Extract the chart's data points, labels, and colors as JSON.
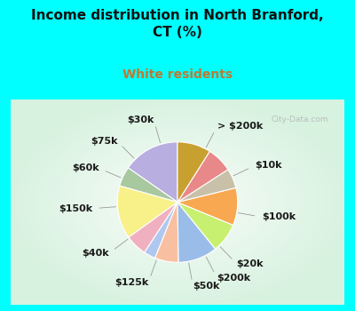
{
  "title": "Income distribution in North Branford,\nCT (%)",
  "subtitle": "White residents",
  "background_outer": "#00FFFF",
  "background_inner_color": "#c8ede0",
  "labels": [
    "> $200k",
    "$10k",
    "$100k",
    "$20k",
    "$200k",
    "$50k",
    "$125k",
    "$40k",
    "$150k",
    "$60k",
    "$75k",
    "$30k"
  ],
  "values": [
    14.5,
    5.0,
    13.5,
    5.5,
    3.0,
    6.0,
    10.0,
    7.5,
    9.5,
    5.0,
    6.5,
    8.5
  ],
  "colors": [
    "#b8aee0",
    "#a8c8a0",
    "#f8f088",
    "#f0b0c0",
    "#b0c8f0",
    "#f8c0a0",
    "#9abce8",
    "#c8f070",
    "#f8a850",
    "#c8c0a8",
    "#e88888",
    "#c8a030"
  ],
  "title_fontsize": 11,
  "subtitle_fontsize": 10,
  "subtitle_color": "#c07830",
  "label_fontsize": 8,
  "startangle": 90
}
